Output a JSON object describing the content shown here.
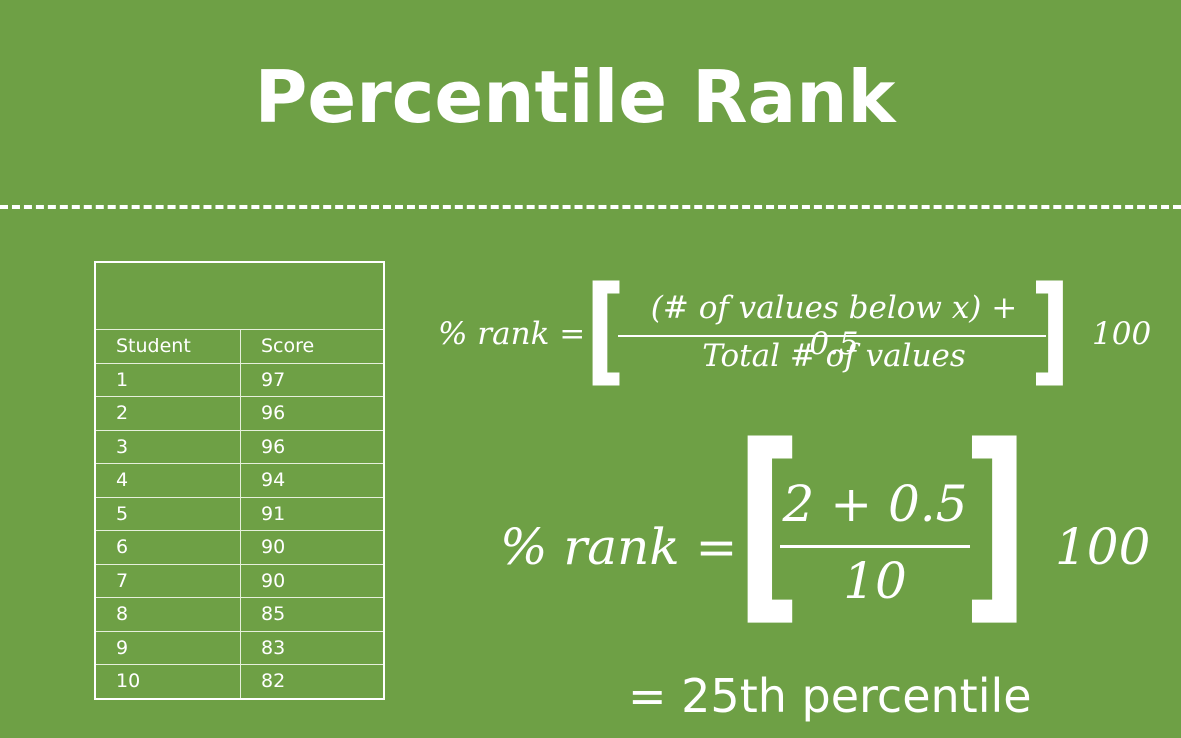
{
  "title": "Percentile Rank",
  "table": {
    "headers": [
      "Student",
      "Score"
    ],
    "rows": [
      [
        "1",
        "97"
      ],
      [
        "2",
        "96"
      ],
      [
        "3",
        "96"
      ],
      [
        "4",
        "94"
      ],
      [
        "5",
        "91"
      ],
      [
        "6",
        "90"
      ],
      [
        "7",
        "90"
      ],
      [
        "8",
        "85"
      ],
      [
        "9",
        "83"
      ],
      [
        "10",
        "82"
      ]
    ]
  },
  "formula_general": {
    "lhs": "% rank =",
    "numerator": "(# of values below x) + 0.5",
    "denominator": "Total # of values",
    "multiplier": "100"
  },
  "formula_applied": {
    "lhs": "% rank =",
    "numerator": "2 + 0.5",
    "denominator": "10",
    "multiplier": "100"
  },
  "result": "= 25th percentile"
}
